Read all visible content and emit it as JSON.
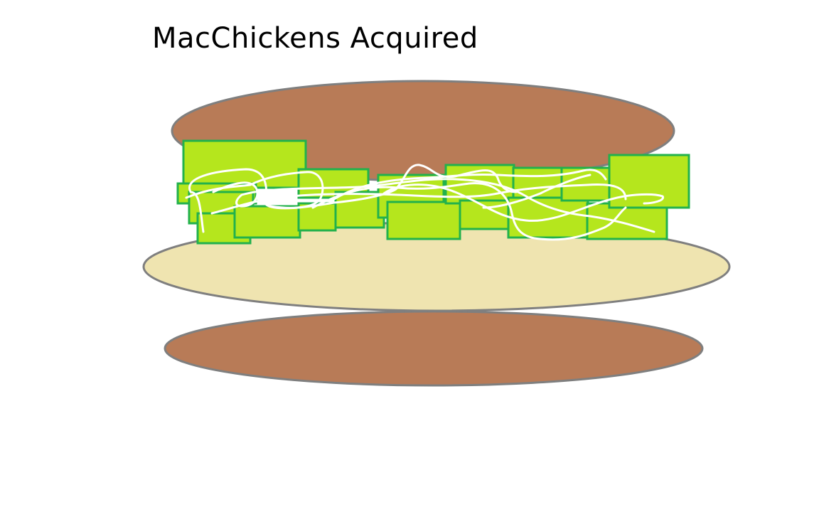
{
  "title": "MacChickens Acquired",
  "colors": {
    "background": "#ffffff",
    "bun": "#b87b57",
    "bun_outline": "#7f7f7f",
    "mayo": "#efe4b0",
    "lettuce_fill": "#b5e61d",
    "lettuce_outline": "#22b14c",
    "sauce": "#ffffff",
    "text": "#000000"
  }
}
